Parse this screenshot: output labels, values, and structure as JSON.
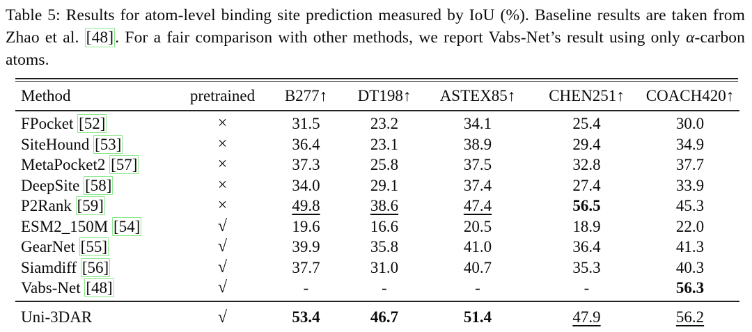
{
  "colors": {
    "citation_box": "#8CE98C",
    "text": "#0b0b0b",
    "rule": "#1c1c1c"
  },
  "caption": {
    "part1": "Table 5: Results for atom-level binding site prediction measured by IoU (%). Baseline results are taken from Zhao et al. ",
    "cite": "[48]",
    "part2": ". For a fair comparison with other methods, we report Vabs-Net’s result using only ",
    "alpha": "α",
    "part3": "-carbon atoms."
  },
  "table": {
    "columns": [
      "Method",
      "pretrained",
      "B277↑",
      "DT198↑",
      "ASTEX85↑",
      "CHEN251↑",
      "COACH420↑"
    ],
    "style_legend": {
      "n": "normal",
      "b": "bold (best)",
      "u": "underline (second best)"
    },
    "rows": [
      {
        "method": "FPocket",
        "cite": "[52]",
        "pretrained": "×",
        "values": [
          {
            "t": "31.5",
            "s": "n"
          },
          {
            "t": "23.2",
            "s": "n"
          },
          {
            "t": "34.1",
            "s": "n"
          },
          {
            "t": "25.4",
            "s": "n"
          },
          {
            "t": "30.0",
            "s": "n"
          }
        ]
      },
      {
        "method": "SiteHound",
        "cite": "[53]",
        "pretrained": "×",
        "values": [
          {
            "t": "36.4",
            "s": "n"
          },
          {
            "t": "23.1",
            "s": "n"
          },
          {
            "t": "38.9",
            "s": "n"
          },
          {
            "t": "29.4",
            "s": "n"
          },
          {
            "t": "34.9",
            "s": "n"
          }
        ]
      },
      {
        "method": "MetaPocket2",
        "cite": "[57]",
        "pretrained": "×",
        "values": [
          {
            "t": "37.3",
            "s": "n"
          },
          {
            "t": "25.8",
            "s": "n"
          },
          {
            "t": "37.5",
            "s": "n"
          },
          {
            "t": "32.8",
            "s": "n"
          },
          {
            "t": "37.7",
            "s": "n"
          }
        ]
      },
      {
        "method": "DeepSite",
        "cite": "[58]",
        "pretrained": "×",
        "values": [
          {
            "t": "34.0",
            "s": "n"
          },
          {
            "t": "29.1",
            "s": "n"
          },
          {
            "t": "37.4",
            "s": "n"
          },
          {
            "t": "27.4",
            "s": "n"
          },
          {
            "t": "33.9",
            "s": "n"
          }
        ]
      },
      {
        "method": "P2Rank",
        "cite": "[59]",
        "pretrained": "×",
        "values": [
          {
            "t": "49.8",
            "s": "u"
          },
          {
            "t": "38.6",
            "s": "u"
          },
          {
            "t": "47.4",
            "s": "u"
          },
          {
            "t": "56.5",
            "s": "b"
          },
          {
            "t": "45.3",
            "s": "n"
          }
        ]
      },
      {
        "method": "ESM2_150M",
        "cite": "[54]",
        "pretrained": "√",
        "values": [
          {
            "t": "19.6",
            "s": "n"
          },
          {
            "t": "16.6",
            "s": "n"
          },
          {
            "t": "20.5",
            "s": "n"
          },
          {
            "t": "18.9",
            "s": "n"
          },
          {
            "t": "22.0",
            "s": "n"
          }
        ]
      },
      {
        "method": "GearNet",
        "cite": "[55]",
        "pretrained": "√",
        "values": [
          {
            "t": "39.9",
            "s": "n"
          },
          {
            "t": "35.8",
            "s": "n"
          },
          {
            "t": "41.0",
            "s": "n"
          },
          {
            "t": "36.4",
            "s": "n"
          },
          {
            "t": "41.3",
            "s": "n"
          }
        ]
      },
      {
        "method": "Siamdiff",
        "cite": "[56]",
        "pretrained": "√",
        "values": [
          {
            "t": "37.7",
            "s": "n"
          },
          {
            "t": "31.0",
            "s": "n"
          },
          {
            "t": "40.7",
            "s": "n"
          },
          {
            "t": "35.3",
            "s": "n"
          },
          {
            "t": "40.3",
            "s": "n"
          }
        ]
      },
      {
        "method": "Vabs-Net",
        "cite": "[48]",
        "pretrained": "√",
        "values": [
          {
            "t": "-",
            "s": "n"
          },
          {
            "t": "-",
            "s": "n"
          },
          {
            "t": "-",
            "s": "n"
          },
          {
            "t": "-",
            "s": "n"
          },
          {
            "t": "56.3",
            "s": "b"
          }
        ]
      }
    ],
    "footer": {
      "method": "Uni-3DAR",
      "cite": "",
      "pretrained": "√",
      "values": [
        {
          "t": "53.4",
          "s": "b"
        },
        {
          "t": "46.7",
          "s": "b"
        },
        {
          "t": "51.4",
          "s": "b"
        },
        {
          "t": "47.9",
          "s": "u"
        },
        {
          "t": "56.2",
          "s": "u"
        }
      ]
    }
  }
}
